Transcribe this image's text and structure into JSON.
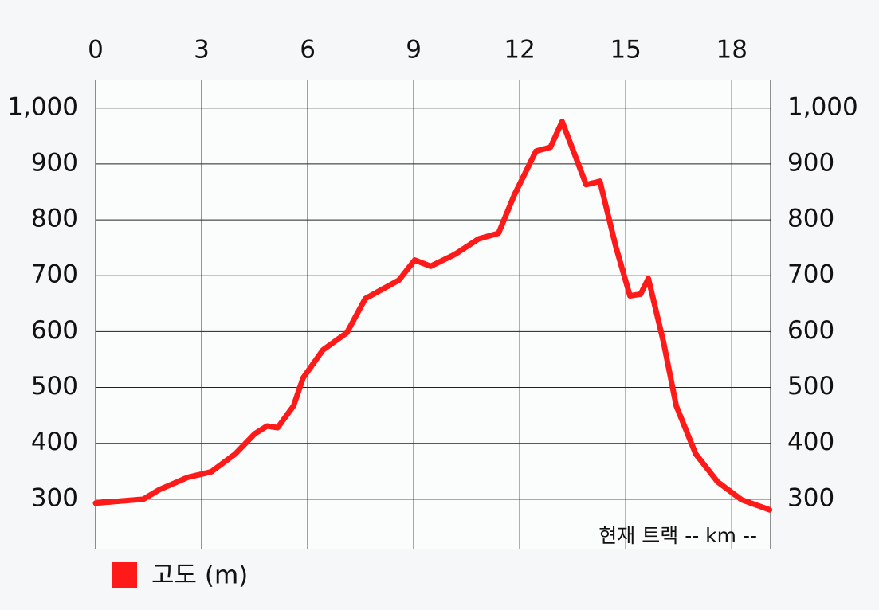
{
  "chart_data": {
    "type": "line",
    "annotation": "현재 트랙 -- km --",
    "x": [
      0,
      1.35,
      1.8,
      2.6,
      3.27,
      3.95,
      4.5,
      4.85,
      5.15,
      5.6,
      5.87,
      6.43,
      7.11,
      7.63,
      8.58,
      9.03,
      9.48,
      10.16,
      10.84,
      11.4,
      11.85,
      12.46,
      12.87,
      13.2,
      13.43,
      13.88,
      14.27,
      14.72,
      15.12,
      15.42,
      15.64,
      16.07,
      16.43,
      16.98,
      17.6,
      18.28,
      19.07
    ],
    "series": [
      {
        "name": "고도 (m)",
        "color": "#ff1a1a",
        "values": [
          293,
          300,
          317,
          339,
          349,
          381,
          417,
          431,
          428,
          467,
          517,
          567,
          598,
          659,
          692,
          728,
          717,
          738,
          766,
          776,
          845,
          923,
          930,
          976,
          938,
          863,
          869,
          752,
          664,
          667,
          695,
          581,
          467,
          381,
          331,
          299,
          281
        ]
      }
    ],
    "xlim": [
      0,
      19.1
    ],
    "xticks": [
      0,
      3,
      6,
      9,
      12,
      15,
      18
    ],
    "ylim": [
      210,
      1051
    ],
    "yticks": [
      300,
      400,
      500,
      600,
      700,
      800,
      900,
      {
        "value": 1000,
        "label": "1,000"
      }
    ],
    "grid": true
  }
}
